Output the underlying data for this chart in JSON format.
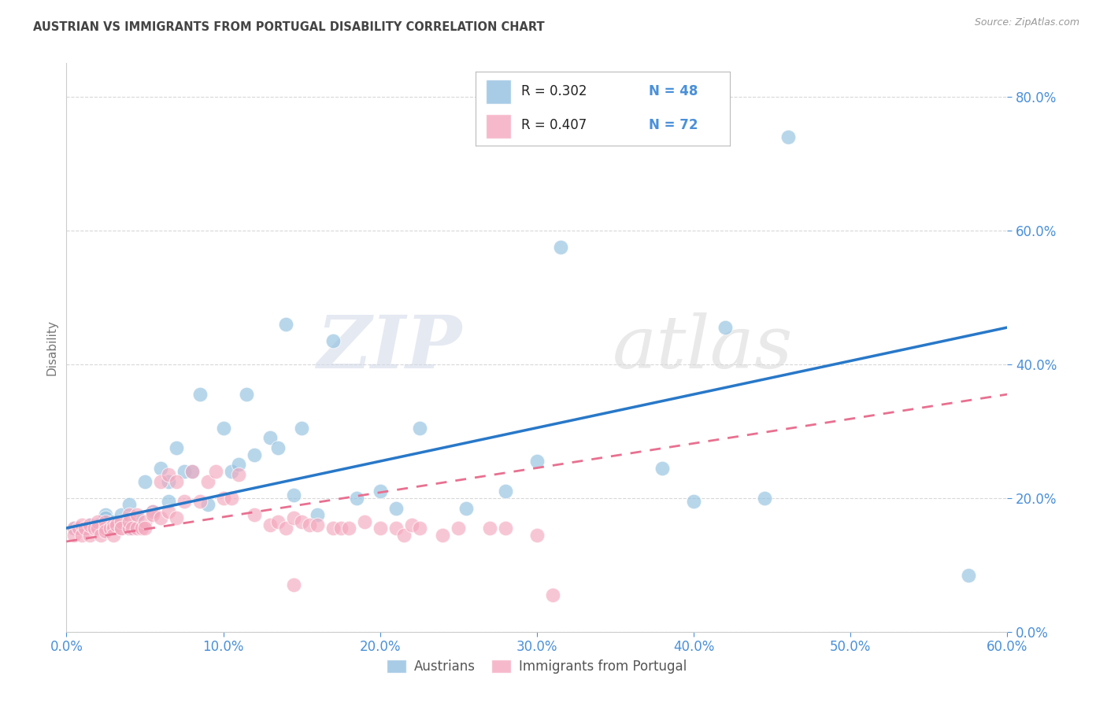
{
  "title": "AUSTRIAN VS IMMIGRANTS FROM PORTUGAL DISABILITY CORRELATION CHART",
  "source": "Source: ZipAtlas.com",
  "ylabel": "Disability",
  "xlim": [
    0.0,
    0.6
  ],
  "ylim": [
    0.0,
    0.85
  ],
  "x_ticks": [
    0.0,
    0.1,
    0.2,
    0.3,
    0.4,
    0.5,
    0.6
  ],
  "y_ticks": [
    0.0,
    0.2,
    0.4,
    0.6,
    0.8
  ],
  "background_color": "#ffffff",
  "grid_color": "#c8c8c8",
  "legend_R_blue": "R = 0.302",
  "legend_N_blue": "N = 48",
  "legend_R_pink": "R = 0.407",
  "legend_N_pink": "N = 72",
  "blue_color": "#92c0e0",
  "pink_color": "#f4a8be",
  "text_color_blue": "#4a90d9",
  "watermark": "ZIPatlas",
  "austrians_x": [
    0.005,
    0.01,
    0.015,
    0.02,
    0.025,
    0.025,
    0.03,
    0.03,
    0.035,
    0.04,
    0.04,
    0.045,
    0.05,
    0.055,
    0.06,
    0.065,
    0.065,
    0.07,
    0.075,
    0.08,
    0.085,
    0.09,
    0.1,
    0.105,
    0.11,
    0.115,
    0.12,
    0.13,
    0.135,
    0.14,
    0.145,
    0.15,
    0.16,
    0.17,
    0.185,
    0.2,
    0.21,
    0.225,
    0.255,
    0.28,
    0.3,
    0.315,
    0.38,
    0.4,
    0.42,
    0.445,
    0.46,
    0.575
  ],
  "austrians_y": [
    0.155,
    0.155,
    0.16,
    0.16,
    0.175,
    0.17,
    0.165,
    0.155,
    0.175,
    0.19,
    0.155,
    0.17,
    0.225,
    0.18,
    0.245,
    0.225,
    0.195,
    0.275,
    0.24,
    0.24,
    0.355,
    0.19,
    0.305,
    0.24,
    0.25,
    0.355,
    0.265,
    0.29,
    0.275,
    0.46,
    0.205,
    0.305,
    0.175,
    0.435,
    0.2,
    0.21,
    0.185,
    0.305,
    0.185,
    0.21,
    0.255,
    0.575,
    0.245,
    0.195,
    0.455,
    0.2,
    0.74,
    0.085
  ],
  "portugal_x": [
    0.005,
    0.005,
    0.008,
    0.01,
    0.01,
    0.012,
    0.015,
    0.015,
    0.018,
    0.02,
    0.02,
    0.022,
    0.025,
    0.025,
    0.025,
    0.028,
    0.03,
    0.03,
    0.03,
    0.032,
    0.035,
    0.035,
    0.035,
    0.04,
    0.04,
    0.04,
    0.042,
    0.045,
    0.045,
    0.048,
    0.05,
    0.05,
    0.055,
    0.055,
    0.06,
    0.06,
    0.065,
    0.065,
    0.07,
    0.07,
    0.075,
    0.08,
    0.085,
    0.09,
    0.095,
    0.1,
    0.105,
    0.11,
    0.12,
    0.13,
    0.135,
    0.14,
    0.145,
    0.15,
    0.155,
    0.16,
    0.17,
    0.175,
    0.18,
    0.19,
    0.2,
    0.21,
    0.215,
    0.22,
    0.225,
    0.24,
    0.25,
    0.27,
    0.28,
    0.3,
    0.31,
    0.145
  ],
  "portugal_y": [
    0.155,
    0.145,
    0.155,
    0.16,
    0.145,
    0.155,
    0.145,
    0.16,
    0.155,
    0.165,
    0.155,
    0.145,
    0.155,
    0.165,
    0.15,
    0.155,
    0.16,
    0.155,
    0.145,
    0.16,
    0.155,
    0.165,
    0.155,
    0.175,
    0.155,
    0.165,
    0.155,
    0.155,
    0.175,
    0.155,
    0.165,
    0.155,
    0.18,
    0.175,
    0.225,
    0.17,
    0.235,
    0.18,
    0.225,
    0.17,
    0.195,
    0.24,
    0.195,
    0.225,
    0.24,
    0.2,
    0.2,
    0.235,
    0.175,
    0.16,
    0.165,
    0.155,
    0.17,
    0.165,
    0.16,
    0.16,
    0.155,
    0.155,
    0.155,
    0.165,
    0.155,
    0.155,
    0.145,
    0.16,
    0.155,
    0.145,
    0.155,
    0.155,
    0.155,
    0.145,
    0.055,
    0.07
  ],
  "blue_line_x": [
    0.0,
    0.6
  ],
  "blue_line_y": [
    0.155,
    0.455
  ],
  "pink_line_x": [
    0.0,
    0.6
  ],
  "pink_line_y": [
    0.135,
    0.355
  ],
  "figsize": [
    14.06,
    8.92
  ],
  "dpi": 100
}
